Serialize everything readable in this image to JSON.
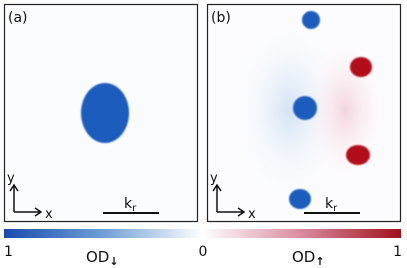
{
  "panels": [
    {
      "label": "(a)",
      "y_axis": "y",
      "x_axis": "x",
      "scale_bar": {
        "main": "k",
        "sub": "r"
      }
    },
    {
      "label": "(b)",
      "y_axis": "y",
      "x_axis": "x",
      "scale_bar": {
        "main": "k",
        "sub": "r"
      }
    }
  ],
  "colorbar": {
    "left_tick": "1",
    "center_tick": "0",
    "right_tick": "1",
    "left_title": {
      "main": "OD",
      "sub": "↓"
    },
    "right_title": {
      "main": "OD",
      "sub": "↑"
    }
  }
}
